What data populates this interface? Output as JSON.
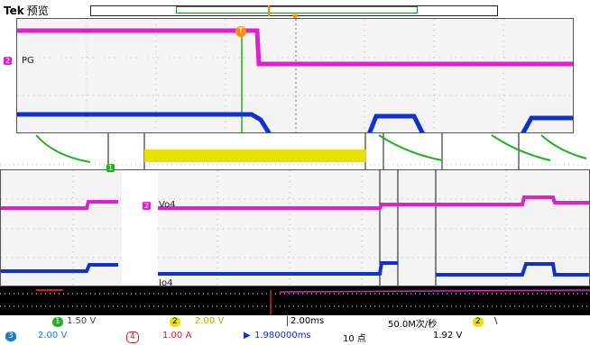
{
  "header": {
    "brand": "Tek",
    "mode": "预览"
  },
  "top_panel": {
    "ch_tag": "2",
    "ch_label": "PG",
    "trigger_flag": "T"
  },
  "mid_panel": {
    "ch_label_vo4": "Vo4",
    "ch_label_io4": "Io4"
  },
  "status": {
    "row1": {
      "ch1_num": "1",
      "ch1_scale": "1.50 V",
      "ch2_num": "2",
      "ch2_scale": "2.00 V",
      "timebase": "2.00ms",
      "sample_rate": "50.0M次/秒",
      "trig_ch": "2",
      "trig_slope": "\\"
    },
    "row2": {
      "ch3_num": "3",
      "ch3_scale": "2.00 V",
      "ch4_num": "4",
      "ch4_scale": "1.00 A",
      "trig_pos": "1.980000ms",
      "rec_len": "10 点",
      "trig_level": "1.92 V"
    }
  },
  "colors": {
    "magenta": "#e020d0",
    "blue": "#1030d0",
    "green": "#20b020",
    "yellow": "#e8e000",
    "orange": "#ff8c00",
    "red": "#d02020"
  }
}
